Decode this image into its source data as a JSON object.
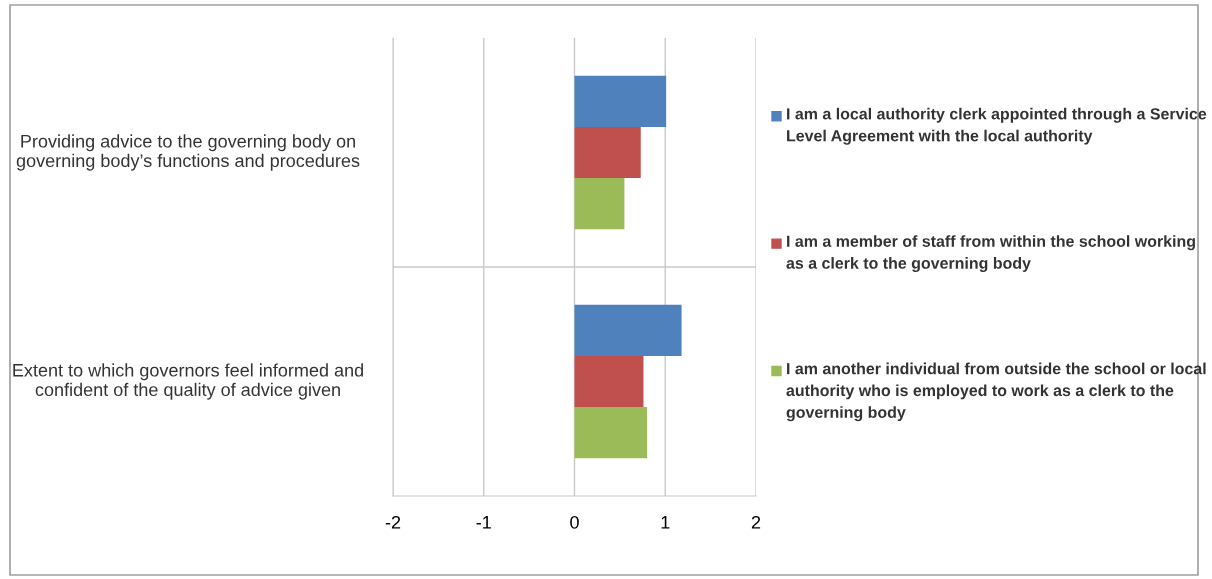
{
  "chart_data": {
    "type": "bar",
    "orientation": "horizontal",
    "categories": [
      "Providing advice to the governing body on governing body’s functions and procedures",
      "Extent to which governors feel informed and confident of the quality of advice given"
    ],
    "series": [
      {
        "name": "I am a local authority clerk appointed through a Service Level Agreement with the local authority",
        "color": "#4f81bd",
        "values": [
          1.01,
          1.18
        ]
      },
      {
        "name": "I am a member of staff from within the school working as a clerk to the governing body",
        "color": "#c0504d",
        "values": [
          0.73,
          0.76
        ]
      },
      {
        "name": "I am another individual from outside the school or local authority who is employed to work as a clerk to the governing body",
        "color": "#9bbb59",
        "values": [
          0.55,
          0.8
        ]
      }
    ],
    "xlim": [
      -2,
      2
    ],
    "xticks": [
      -2,
      -1,
      0,
      1,
      2
    ],
    "grid": true,
    "legend": "right"
  }
}
